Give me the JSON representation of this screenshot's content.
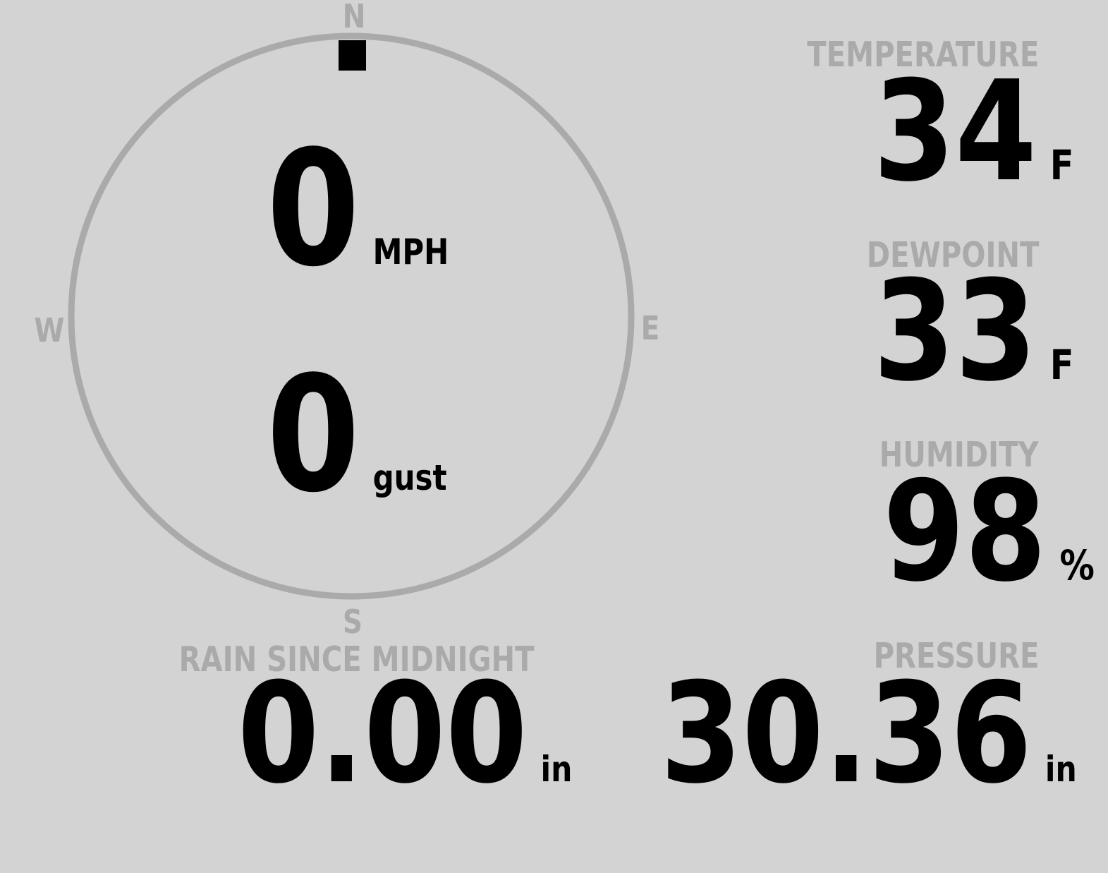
{
  "wind": {
    "speed": "0",
    "speed_unit": "MPH",
    "gust": "0",
    "gust_unit": "gust",
    "direction_deg": 0,
    "compass": {
      "n": "N",
      "e": "E",
      "s": "S",
      "w": "W"
    }
  },
  "temperature": {
    "label": "TEMPERATURE",
    "value": "34",
    "unit": "F"
  },
  "dewpoint": {
    "label": "DEWPOINT",
    "value": "33",
    "unit": "F"
  },
  "humidity": {
    "label": "HUMIDITY",
    "value": "98",
    "unit": "%"
  },
  "pressure": {
    "label": "PRESSURE",
    "value": "30.36",
    "unit": "in"
  },
  "rain": {
    "label": "RAIN SINCE MIDNIGHT",
    "value": "0.00",
    "unit": "in"
  },
  "colors": {
    "background": "#d3d3d3",
    "label": "#aaaaaa",
    "value": "#000000",
    "dial": "#aaaaaa"
  }
}
